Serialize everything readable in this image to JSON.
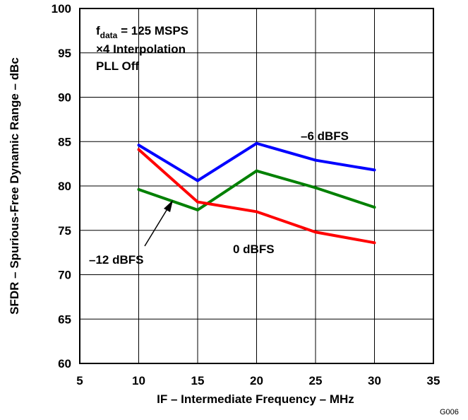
{
  "chart_data": {
    "type": "line",
    "xlabel": "IF – Intermediate Frequency – MHz",
    "ylabel": "SFDR – Spurious-Free Dynamic Range – dBc",
    "xlim": [
      5,
      35
    ],
    "ylim": [
      60,
      100
    ],
    "x_ticks": [
      "5",
      "10",
      "15",
      "20",
      "25",
      "30",
      "35"
    ],
    "y_ticks": [
      "60",
      "65",
      "70",
      "75",
      "80",
      "85",
      "90",
      "95",
      "100"
    ],
    "grid": true,
    "x": [
      10,
      15,
      20,
      25,
      30
    ],
    "series": [
      {
        "name": "–6 dBFS",
        "color": "#0000ff",
        "values": [
          84.6,
          80.6,
          84.8,
          82.9,
          81.8
        ]
      },
      {
        "name": "–12 dBFS",
        "color": "#008000",
        "values": [
          79.6,
          77.3,
          81.7,
          79.8,
          77.6
        ]
      },
      {
        "name": "0 dBFS",
        "color": "#ff0000",
        "values": [
          84.1,
          78.2,
          77.1,
          74.8,
          73.6
        ]
      }
    ],
    "annotation": {
      "line1_main": "f",
      "line1_sub": "data",
      "line1_rest": " = 125 MSPS",
      "line2": "×4 Interpolation",
      "line3": "PLL Off"
    },
    "figure_id": "G006"
  }
}
